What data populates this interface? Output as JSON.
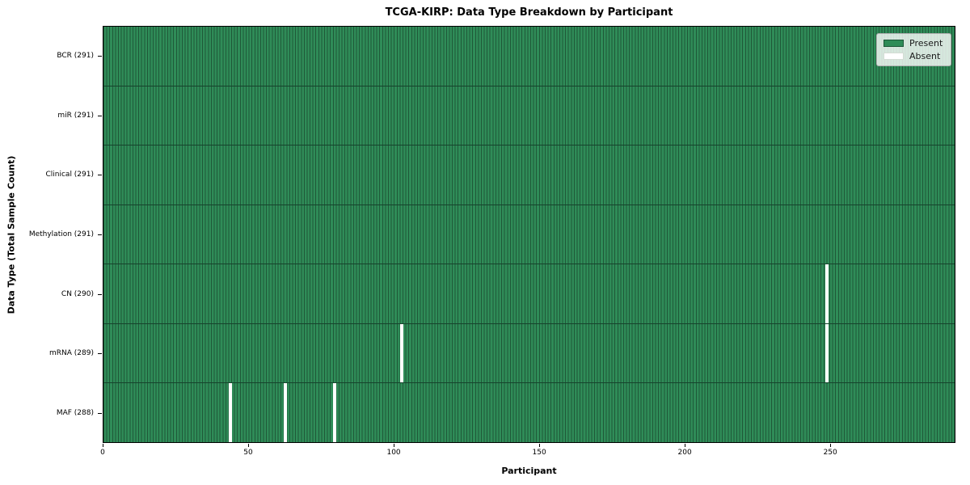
{
  "chart_data": {
    "type": "heatmap",
    "title": "TCGA-KIRP: Data Type Breakdown by Participant",
    "xlabel": "Participant",
    "ylabel": "Data Type (Total Sample Count)",
    "x_ticks": [
      0,
      50,
      100,
      150,
      200,
      250
    ],
    "x_axis_range": [
      0,
      293
    ],
    "total_participants": 291,
    "legend": {
      "present_label": "Present",
      "absent_label": "Absent",
      "position": "upper right"
    },
    "colors": {
      "present": "#2f8c58",
      "present_edge": "#1f5838",
      "absent": "#ffffff"
    },
    "rows": [
      {
        "label": "BCR (291)",
        "data_type": "BCR",
        "present_count": 291,
        "absent_participants": []
      },
      {
        "label": "miR (291)",
        "data_type": "miR",
        "present_count": 291,
        "absent_participants": []
      },
      {
        "label": "Clinical (291)",
        "data_type": "Clinical",
        "present_count": 291,
        "absent_participants": []
      },
      {
        "label": "Methylation (291)",
        "data_type": "Methylation",
        "present_count": 291,
        "absent_participants": []
      },
      {
        "label": "CN (290)",
        "data_type": "CN",
        "present_count": 290,
        "absent_participants": [
          248
        ]
      },
      {
        "label": "mRNA (289)",
        "data_type": "mRNA",
        "present_count": 289,
        "absent_participants": [
          102,
          248
        ]
      },
      {
        "label": "MAF (288)",
        "data_type": "MAF",
        "present_count": 288,
        "absent_participants": [
          43,
          62,
          79
        ]
      }
    ]
  }
}
